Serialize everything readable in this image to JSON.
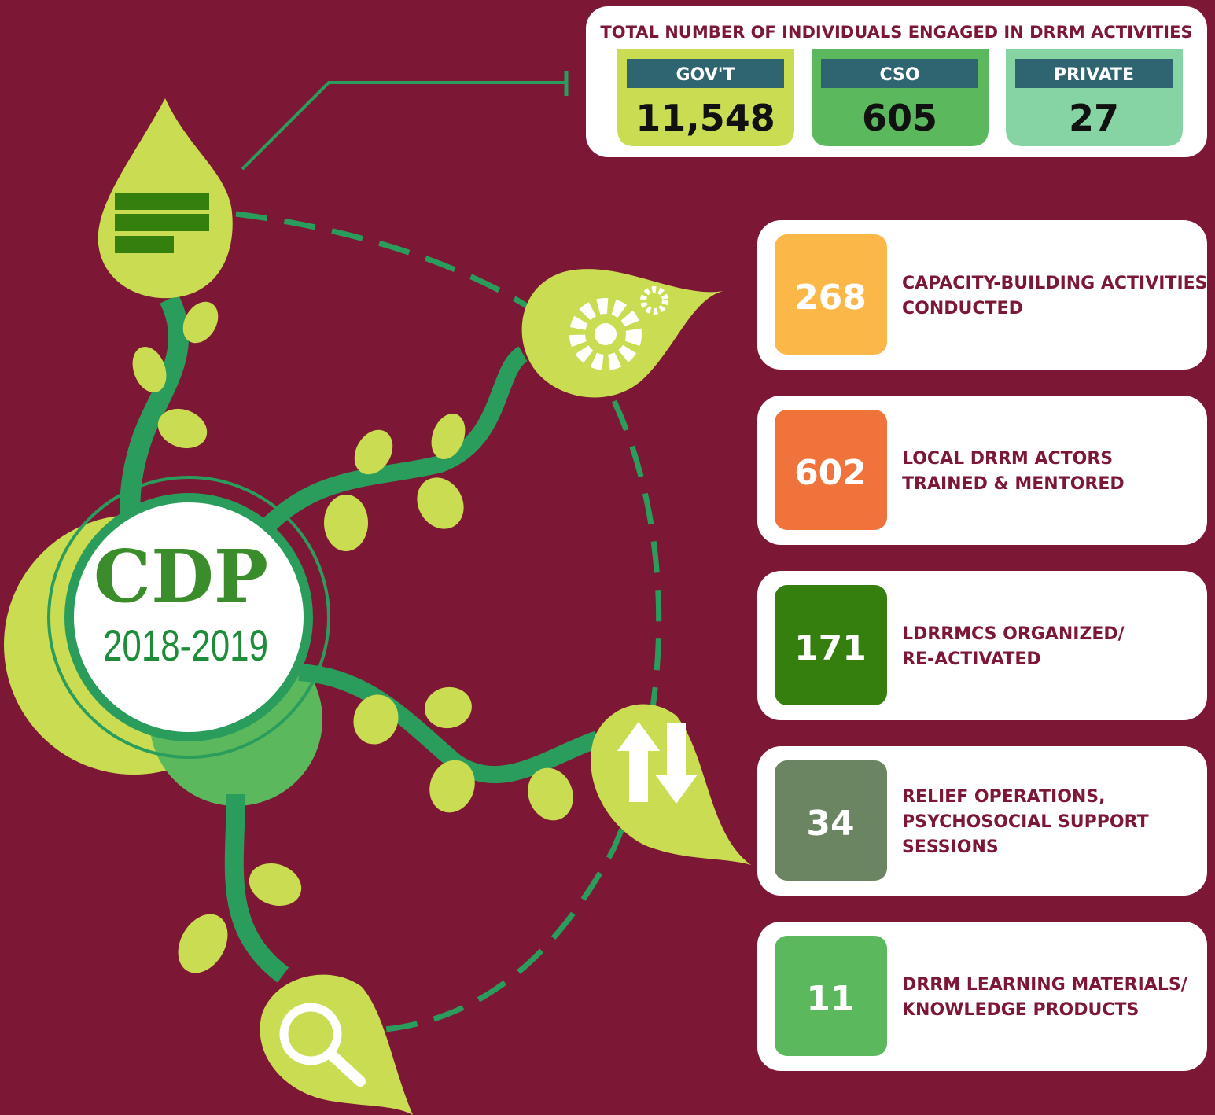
{
  "header": {
    "title": "TOTAL NUMBER OF INDIVIDUALS ENGAGED IN DRRM ACTIVITIES",
    "totals": [
      {
        "label": "GOV'T",
        "value": "11,548"
      },
      {
        "label": "CSO",
        "value": "605"
      },
      {
        "label": "PRIVATE",
        "value": "27"
      }
    ]
  },
  "logo": {
    "name": "CDP",
    "years": "2018-2019"
  },
  "stats": [
    {
      "value": "268",
      "lines": [
        "CAPACITY-BUILDING ACTIVITIES",
        "CONDUCTED"
      ]
    },
    {
      "value": "602",
      "lines": [
        "LOCAL DRRM ACTORS",
        "TRAINED & MENTORED"
      ]
    },
    {
      "value": "171",
      "lines": [
        "LDRRMCS ORGANIZED/",
        "RE-ACTIVATED"
      ]
    },
    {
      "value": "34",
      "lines": [
        "RELIEF OPERATIONS,",
        "PSYCHOSOCIAL SUPPORT",
        "SESSIONS"
      ]
    },
    {
      "value": "11",
      "lines": [
        "DRRM LEARNING MATERIALS/",
        "KNOWLEDGE PRODUCTS"
      ]
    }
  ]
}
